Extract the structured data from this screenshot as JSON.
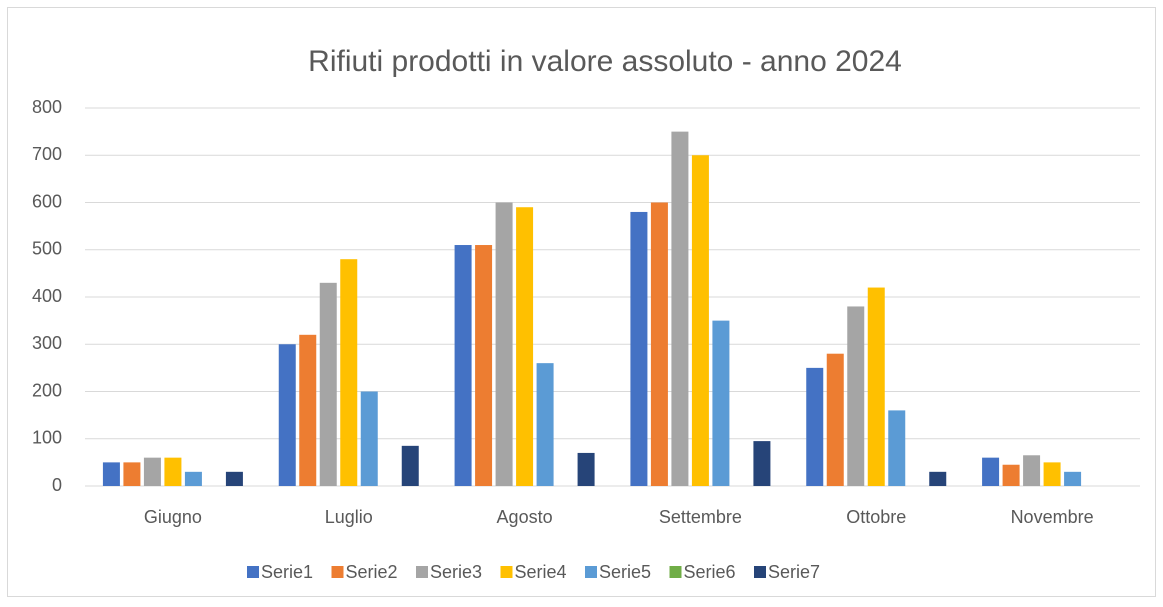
{
  "chart_data": {
    "type": "bar",
    "title": "Rifiuti prodotti in valore assoluto - anno 2024",
    "categories": [
      "Giugno",
      "Luglio",
      "Agosto",
      "Settembre",
      "Ottobre",
      "Novembre"
    ],
    "series": [
      {
        "name": "Serie1",
        "color": "#4472c4",
        "values": [
          50,
          300,
          510,
          580,
          250,
          60
        ]
      },
      {
        "name": "Serie2",
        "color": "#ed7d31",
        "values": [
          50,
          320,
          510,
          600,
          280,
          45
        ]
      },
      {
        "name": "Serie3",
        "color": "#a5a5a5",
        "values": [
          60,
          430,
          600,
          750,
          380,
          65
        ]
      },
      {
        "name": "Serie4",
        "color": "#ffc000",
        "values": [
          60,
          480,
          590,
          700,
          420,
          50
        ]
      },
      {
        "name": "Serie5",
        "color": "#5b9bd5",
        "values": [
          30,
          200,
          260,
          350,
          160,
          30
        ]
      },
      {
        "name": "Serie6",
        "color": "#70ad47",
        "values": [
          0,
          0,
          0,
          0,
          0,
          0
        ]
      },
      {
        "name": "Serie7",
        "color": "#264478",
        "values": [
          30,
          85,
          70,
          95,
          30,
          0
        ]
      }
    ],
    "ylim": [
      0,
      800
    ],
    "yticks": [
      0,
      100,
      200,
      300,
      400,
      500,
      600,
      700,
      800
    ],
    "grid": true,
    "legend": "bottom"
  }
}
